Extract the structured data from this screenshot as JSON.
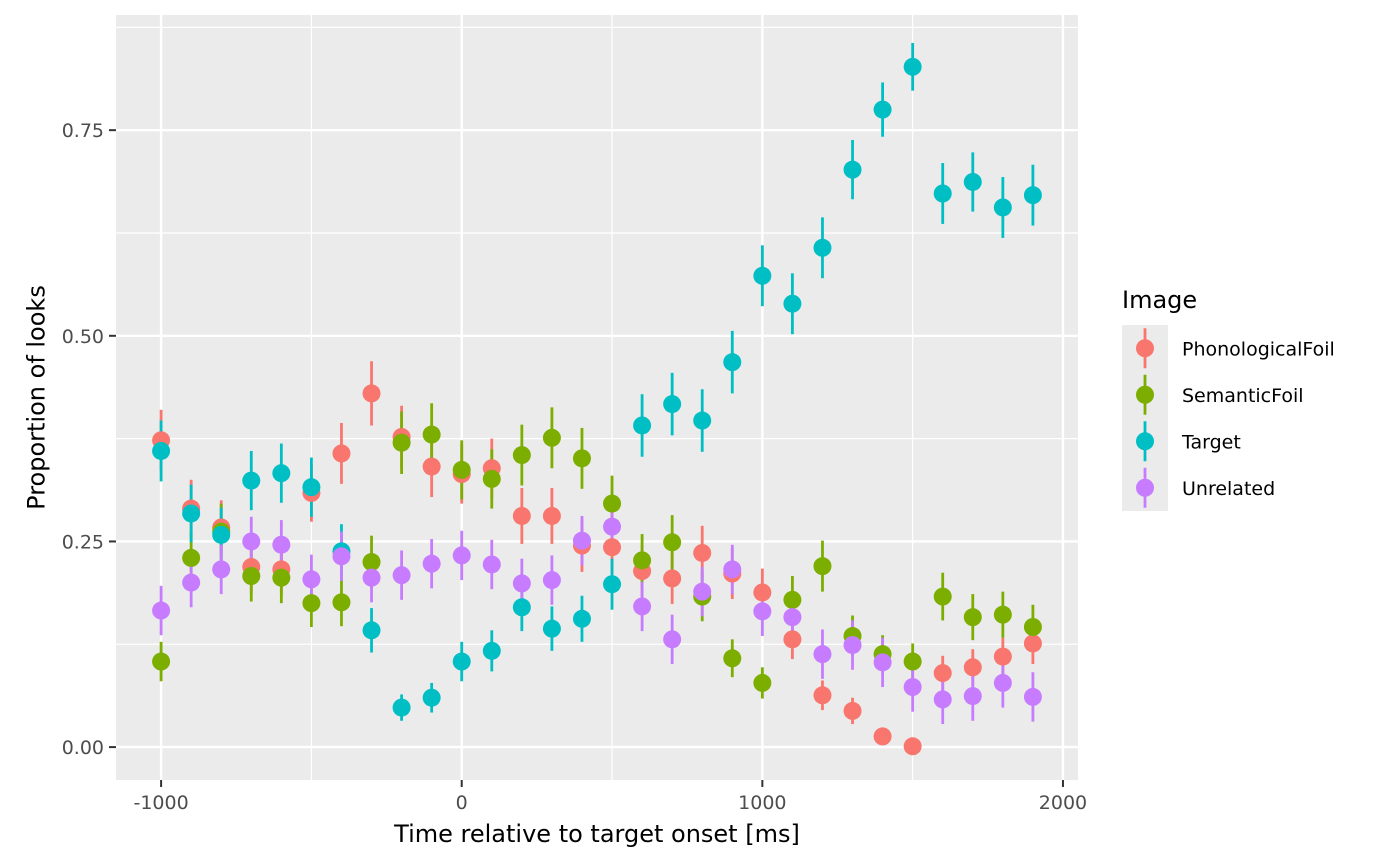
{
  "chart_data": {
    "type": "scatter",
    "xlabel": "Time relative to target onset [ms]",
    "ylabel": "Proportion of looks",
    "xlim": [
      -1150,
      2050
    ],
    "ylim": [
      -0.04,
      0.89
    ],
    "x_ticks": [
      -1000,
      0,
      1000,
      2000
    ],
    "x_tick_labels": [
      "-1000",
      "0",
      "1000",
      "2000"
    ],
    "y_ticks": [
      0,
      0.25,
      0.5,
      0.75
    ],
    "y_tick_labels": [
      "0.00",
      "0.25",
      "0.50",
      "0.75"
    ],
    "grid": true,
    "legend": {
      "title": "Image",
      "position": "right"
    },
    "x": [
      -1000,
      -900,
      -800,
      -700,
      -600,
      -500,
      -400,
      -300,
      -200,
      -100,
      0,
      100,
      200,
      300,
      400,
      500,
      600,
      700,
      800,
      900,
      1000,
      1100,
      1200,
      1300,
      1400,
      1500,
      1600,
      1700,
      1800,
      1900
    ],
    "series": [
      {
        "name": "PhonologicalFoil",
        "color": "#F8766D",
        "values": [
          0.373,
          0.29,
          0.267,
          0.219,
          0.216,
          0.309,
          0.357,
          0.43,
          0.377,
          0.341,
          0.332,
          0.339,
          0.281,
          0.281,
          0.245,
          0.243,
          0.214,
          0.205,
          0.236,
          0.211,
          0.188,
          0.131,
          0.063,
          0.044,
          0.013,
          0.001,
          0.09,
          0.097,
          0.11,
          0.126
        ],
        "err": [
          0.037,
          0.035,
          0.033,
          0.032,
          0.032,
          0.035,
          0.037,
          0.039,
          0.038,
          0.037,
          0.036,
          0.036,
          0.034,
          0.034,
          0.032,
          0.032,
          0.031,
          0.031,
          0.033,
          0.031,
          0.029,
          0.024,
          0.018,
          0.016,
          0.008,
          0.003,
          0.021,
          0.022,
          0.023,
          0.025
        ]
      },
      {
        "name": "SemanticFoil",
        "color": "#7CAE00",
        "values": [
          0.104,
          0.23,
          0.262,
          0.208,
          0.206,
          0.175,
          0.176,
          0.225,
          0.37,
          0.38,
          0.337,
          0.326,
          0.355,
          0.376,
          0.351,
          0.296,
          0.227,
          0.249,
          0.183,
          0.108,
          0.078,
          0.179,
          0.22,
          0.135,
          0.113,
          0.104,
          0.183,
          0.158,
          0.161,
          0.146
        ],
        "err": [
          0.024,
          0.032,
          0.034,
          0.031,
          0.031,
          0.029,
          0.029,
          0.032,
          0.038,
          0.038,
          0.036,
          0.036,
          0.037,
          0.037,
          0.037,
          0.034,
          0.032,
          0.033,
          0.03,
          0.023,
          0.019,
          0.029,
          0.031,
          0.025,
          0.023,
          0.022,
          0.029,
          0.028,
          0.028,
          0.027
        ]
      },
      {
        "name": "Target",
        "color": "#00BFC4",
        "values": [
          0.36,
          0.284,
          0.258,
          0.324,
          0.333,
          0.316,
          0.238,
          0.142,
          0.048,
          0.06,
          0.104,
          0.117,
          0.17,
          0.144,
          0.156,
          0.198,
          0.391,
          0.417,
          0.397,
          0.468,
          0.573,
          0.539,
          0.607,
          0.702,
          0.775,
          0.827,
          0.673,
          0.687,
          0.656,
          0.671
        ],
        "err": [
          0.037,
          0.035,
          0.033,
          0.036,
          0.036,
          0.036,
          0.033,
          0.027,
          0.016,
          0.018,
          0.024,
          0.025,
          0.029,
          0.027,
          0.028,
          0.031,
          0.038,
          0.038,
          0.038,
          0.038,
          0.037,
          0.037,
          0.037,
          0.036,
          0.033,
          0.029,
          0.037,
          0.036,
          0.037,
          0.037
        ]
      },
      {
        "name": "Unrelated",
        "color": "#C77CFF",
        "values": [
          0.166,
          0.2,
          0.216,
          0.25,
          0.246,
          0.204,
          0.232,
          0.206,
          0.209,
          0.223,
          0.233,
          0.222,
          0.199,
          0.203,
          0.251,
          0.268,
          0.171,
          0.131,
          0.189,
          0.216,
          0.165,
          0.158,
          0.113,
          0.124,
          0.103,
          0.073,
          0.058,
          0.062,
          0.078,
          0.061
        ]
      }
    ]
  }
}
